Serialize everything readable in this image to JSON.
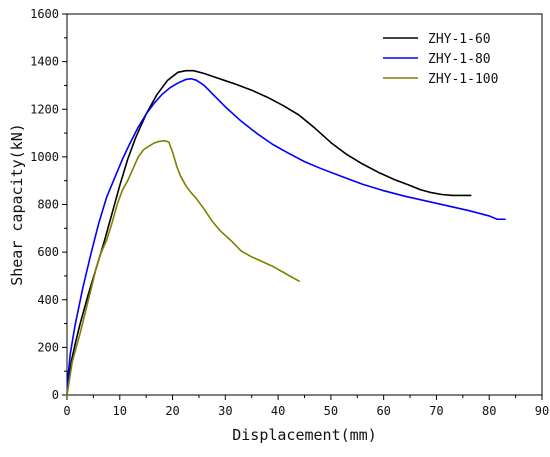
{
  "chart_data": {
    "type": "line",
    "title": "",
    "xlabel": "Displacement(mm)",
    "ylabel": "Shear capacity(kN)",
    "xlim": [
      0,
      90
    ],
    "ylim": [
      0,
      1600
    ],
    "xticks": [
      0,
      10,
      20,
      30,
      40,
      50,
      60,
      70,
      80,
      90
    ],
    "yticks": [
      0,
      200,
      400,
      600,
      800,
      1000,
      1200,
      1400,
      1600
    ],
    "grid": false,
    "legend_position": "top-right",
    "series": [
      {
        "name": "ZHY-1-60",
        "color": "#000000",
        "points": [
          [
            0,
            0
          ],
          [
            0.3,
            60
          ],
          [
            0.8,
            140
          ],
          [
            1.5,
            210
          ],
          [
            2.5,
            300
          ],
          [
            4,
            420
          ],
          [
            5.5,
            530
          ],
          [
            7,
            640
          ],
          [
            8.5,
            760
          ],
          [
            10,
            880
          ],
          [
            11.5,
            990
          ],
          [
            13,
            1080
          ],
          [
            15,
            1180
          ],
          [
            17,
            1260
          ],
          [
            19,
            1320
          ],
          [
            21,
            1355
          ],
          [
            22.5,
            1362
          ],
          [
            24,
            1362
          ],
          [
            26,
            1350
          ],
          [
            28,
            1335
          ],
          [
            30,
            1320
          ],
          [
            32,
            1305
          ],
          [
            35,
            1280
          ],
          [
            38,
            1250
          ],
          [
            41,
            1215
          ],
          [
            44,
            1175
          ],
          [
            47,
            1120
          ],
          [
            50,
            1060
          ],
          [
            53,
            1010
          ],
          [
            56,
            970
          ],
          [
            59,
            935
          ],
          [
            62,
            905
          ],
          [
            65,
            880
          ],
          [
            67,
            862
          ],
          [
            69,
            850
          ],
          [
            71,
            842
          ],
          [
            73,
            838
          ],
          [
            75,
            838
          ],
          [
            76.5,
            838
          ]
        ]
      },
      {
        "name": "ZHY-1-80",
        "color": "#0000ff",
        "points": [
          [
            0,
            0
          ],
          [
            0.2,
            80
          ],
          [
            0.6,
            170
          ],
          [
            1.5,
            290
          ],
          [
            3,
            450
          ],
          [
            4.5,
            590
          ],
          [
            6,
            720
          ],
          [
            7.5,
            830
          ],
          [
            9,
            910
          ],
          [
            10.5,
            990
          ],
          [
            12,
            1060
          ],
          [
            13.5,
            1125
          ],
          [
            15,
            1180
          ],
          [
            16.5,
            1225
          ],
          [
            18,
            1262
          ],
          [
            19.5,
            1290
          ],
          [
            21,
            1310
          ],
          [
            22.5,
            1325
          ],
          [
            23.5,
            1328
          ],
          [
            24.5,
            1322
          ],
          [
            26,
            1300
          ],
          [
            28,
            1255
          ],
          [
            30,
            1210
          ],
          [
            33,
            1150
          ],
          [
            36,
            1098
          ],
          [
            39,
            1052
          ],
          [
            42,
            1015
          ],
          [
            45,
            980
          ],
          [
            48,
            952
          ],
          [
            52,
            918
          ],
          [
            56,
            885
          ],
          [
            60,
            858
          ],
          [
            64,
            835
          ],
          [
            68,
            815
          ],
          [
            72,
            795
          ],
          [
            76,
            775
          ],
          [
            80,
            752
          ],
          [
            81.5,
            738
          ],
          [
            83,
            738
          ]
        ]
      },
      {
        "name": "ZHY-1-100",
        "color": "#808000",
        "points": [
          [
            0,
            0
          ],
          [
            0.5,
            70
          ],
          [
            1,
            140
          ],
          [
            1.5,
            180
          ],
          [
            2.5,
            260
          ],
          [
            3.5,
            350
          ],
          [
            4.5,
            440
          ],
          [
            5.5,
            530
          ],
          [
            6.5,
            600
          ],
          [
            7.5,
            650
          ],
          [
            8.5,
            720
          ],
          [
            9.5,
            800
          ],
          [
            10.5,
            860
          ],
          [
            11.5,
            900
          ],
          [
            12.5,
            950
          ],
          [
            13.5,
            1000
          ],
          [
            14.5,
            1030
          ],
          [
            15.5,
            1045
          ],
          [
            16.5,
            1058
          ],
          [
            17.5,
            1065
          ],
          [
            18.5,
            1068
          ],
          [
            19.3,
            1062
          ],
          [
            20,
            1020
          ],
          [
            20.8,
            960
          ],
          [
            21.5,
            920
          ],
          [
            22.5,
            880
          ],
          [
            23.5,
            850
          ],
          [
            24.5,
            825
          ],
          [
            26,
            780
          ],
          [
            27.5,
            730
          ],
          [
            29,
            690
          ],
          [
            31,
            650
          ],
          [
            33,
            605
          ],
          [
            35,
            580
          ],
          [
            37,
            560
          ],
          [
            39,
            540
          ],
          [
            41,
            515
          ],
          [
            43,
            490
          ],
          [
            44,
            478
          ]
        ]
      }
    ]
  }
}
